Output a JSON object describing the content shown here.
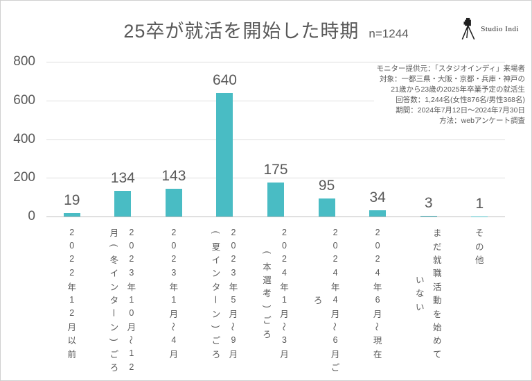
{
  "title": {
    "text": "25卒が就活を開始した時期",
    "n_label": "n=1244"
  },
  "logo": {
    "text": "Studio Indi"
  },
  "annotation": {
    "lines": [
      "モニター提供元：「スタジオインディ」来場者",
      "対象：一都三県・大阪・京都・兵庫・神戸の",
      "21歳から23歳の2025年卒業予定の就活生",
      "回答数：1,244名(女性876名/男性368名)",
      "期間：2024年7月12日～2024年7月30日",
      "方法：webアンケート調査"
    ]
  },
  "chart_data": {
    "type": "bar",
    "title": "25卒が就活を開始した時期 n=1244",
    "categories": [
      "2022年12月以前",
      "2023年10月～12月(冬インターン)ごろ",
      "2023年1月～4月",
      "2023年5月～9月(夏インターン)ごろ",
      "2024年1月～3月(本選考)ごろ",
      "2024年4月～6月ごろ",
      "2024年6月～現在",
      "まだ就職活動を始めていない",
      "その他"
    ],
    "category_columns": [
      [
        "2022年12月以前"
      ],
      [
        "2023年10月～12",
        "月(冬インターン)ごろ"
      ],
      [
        "2023年1月～4月"
      ],
      [
        "2023年5月～9月",
        "(夏インターン)ごろ"
      ],
      [
        "2024年1月～3月",
        "(本選考)ごろ"
      ],
      [
        "2024年4月～6月ご",
        "ろ"
      ],
      [
        "2024年6月～現在"
      ],
      [
        "まだ就職活動を始めて",
        "いない"
      ],
      [
        "その他"
      ]
    ],
    "values": [
      19,
      134,
      143,
      640,
      175,
      95,
      34,
      3,
      1
    ],
    "ylim": [
      0,
      800
    ],
    "y_ticks": [
      800,
      600,
      400,
      200,
      0
    ],
    "xlabel": "",
    "ylabel": "",
    "grid": true,
    "legend": false,
    "bar_color": "#49bcc4",
    "grid_color": "#dedede",
    "axis_color": "#bdbdbd",
    "text_color": "#595959"
  }
}
